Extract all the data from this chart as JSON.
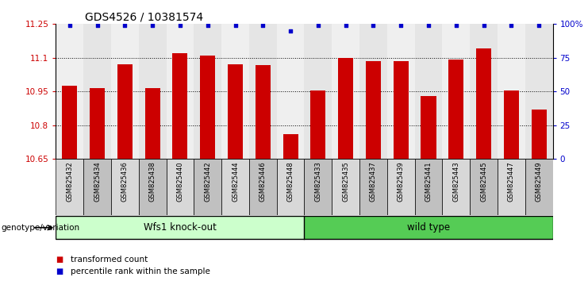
{
  "title": "GDS4526 / 10381574",
  "samples": [
    "GSM825432",
    "GSM825434",
    "GSM825436",
    "GSM825438",
    "GSM825440",
    "GSM825442",
    "GSM825444",
    "GSM825446",
    "GSM825448",
    "GSM825433",
    "GSM825435",
    "GSM825437",
    "GSM825439",
    "GSM825441",
    "GSM825443",
    "GSM825445",
    "GSM825447",
    "GSM825449"
  ],
  "bar_values": [
    10.975,
    10.965,
    11.07,
    10.965,
    11.12,
    11.11,
    11.07,
    11.065,
    10.76,
    10.955,
    11.1,
    11.085,
    11.085,
    10.93,
    11.09,
    11.14,
    10.955,
    10.87
  ],
  "percentile_values": [
    99,
    99,
    99,
    99,
    99,
    99,
    99,
    99,
    95,
    99,
    99,
    99,
    99,
    99,
    99,
    99,
    99,
    99
  ],
  "bar_color": "#cc0000",
  "percentile_color": "#0000cc",
  "ylim_left": [
    10.65,
    11.25
  ],
  "ylim_right": [
    0,
    100
  ],
  "yticks_left": [
    10.65,
    10.8,
    10.95,
    11.1,
    11.25
  ],
  "yticks_right": [
    0,
    25,
    50,
    75,
    100
  ],
  "ytick_labels_left": [
    "10.65",
    "10.8",
    "10.95",
    "11.1",
    "11.25"
  ],
  "ytick_labels_right": [
    "0",
    "25",
    "50",
    "75",
    "100%"
  ],
  "grid_yticks": [
    10.8,
    10.95,
    11.1
  ],
  "group1_label": "Wfs1 knock-out",
  "group2_label": "wild type",
  "group1_count": 9,
  "group2_count": 9,
  "group1_color": "#ccffcc",
  "group2_color": "#55cc55",
  "genotype_label": "genotype/variation",
  "legend_bar_label": "transformed count",
  "legend_pct_label": "percentile rank within the sample",
  "bar_width": 0.55,
  "background_color": "#ffffff",
  "tick_label_color_left": "#cc0000",
  "tick_label_color_right": "#0000cc",
  "col_bg_even": "#d8d8d8",
  "col_bg_odd": "#c0c0c0"
}
